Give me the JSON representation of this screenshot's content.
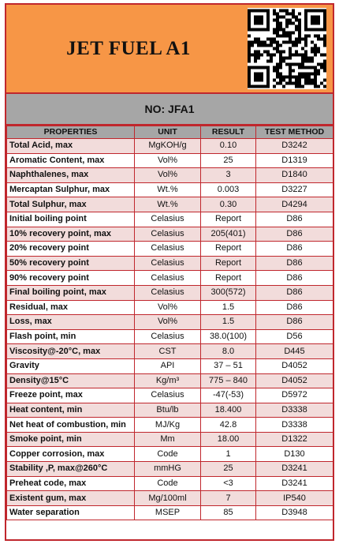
{
  "header": {
    "title": "JET FUEL A1",
    "qr_icon": "qr-code-icon"
  },
  "subheader": {
    "label": "NO: JFA1"
  },
  "colors": {
    "header_bg": "#f79646",
    "subheader_bg": "#a6a6a6",
    "border": "#c0272d",
    "row_alt": "#f2dcdb"
  },
  "table": {
    "columns": [
      "PROPERTIES",
      "UNIT",
      "RESULT",
      "TEST METHOD"
    ],
    "rows": [
      {
        "property": "Total Acid, max",
        "unit": "MgKOH/g",
        "result": "0.10",
        "method": "D3242"
      },
      {
        "property": "Aromatic Content, max",
        "unit": "Vol%",
        "result": "25",
        "method": "D1319"
      },
      {
        "property": "Naphthalenes, max",
        "unit": "Vol%",
        "result": "3",
        "method": "D1840"
      },
      {
        "property": "Mercaptan Sulphur, max",
        "unit": "Wt.%",
        "result": "0.003",
        "method": "D3227"
      },
      {
        "property": "Total Sulphur, max",
        "unit": "Wt.%",
        "result": "0.30",
        "method": "D4294"
      },
      {
        "property": "Initial boiling point",
        "unit": "Celasius",
        "result": "Report",
        "method": "D86"
      },
      {
        "property": "10% recovery point, max",
        "unit": "Celasius",
        "result": "205(401)",
        "method": "D86"
      },
      {
        "property": "20% recovery point",
        "unit": "Celasius",
        "result": "Report",
        "method": "D86"
      },
      {
        "property": "50% recovery point",
        "unit": "Celasius",
        "result": "Report",
        "method": "D86"
      },
      {
        "property": "90% recovery point",
        "unit": "Celasius",
        "result": "Report",
        "method": "D86"
      },
      {
        "property": "Final boiling point, max",
        "unit": "Celasius",
        "result": "300(572)",
        "method": "D86"
      },
      {
        "property": "Residual, max",
        "unit": "Vol%",
        "result": "1.5",
        "method": "D86"
      },
      {
        "property": "Loss, max",
        "unit": "Vol%",
        "result": "1.5",
        "method": "D86"
      },
      {
        "property": "Flash point, min",
        "unit": "Celasius",
        "result": "38.0(100)",
        "method": "D56"
      },
      {
        "property": "Viscosity@-20°C, max",
        "unit": "CST",
        "result": "8.0",
        "method": "D445"
      },
      {
        "property": "Gravity",
        "unit": "API",
        "result": "37 – 51",
        "method": "D4052"
      },
      {
        "property": "Density@15°C",
        "unit": "Kg/m³",
        "result": "775 – 840",
        "method": "D4052"
      },
      {
        "property": "Freeze point, max",
        "unit": "Celasius",
        "result": "-47(-53)",
        "method": "D5972"
      },
      {
        "property": "Heat content, min",
        "unit": "Btu/lb",
        "result": "18.400",
        "method": "D3338"
      },
      {
        "property": "Net heat of combustion, min",
        "unit": "MJ/Kg",
        "result": "42.8",
        "method": "D3338"
      },
      {
        "property": "Smoke point, min",
        "unit": "Mm",
        "result": "18.00",
        "method": "D1322"
      },
      {
        "property": "Copper corrosion, max",
        "unit": "Code",
        "result": "1",
        "method": "D130"
      },
      {
        "property": "Stability ,P, max@260°C",
        "unit": "mmHG",
        "result": "25",
        "method": "D3241"
      },
      {
        "property": "Preheat code, max",
        "unit": "Code",
        "result": "<3",
        "method": "D3241"
      },
      {
        "property": "Existent gum, max",
        "unit": "Mg/100ml",
        "result": "7",
        "method": "IP540"
      },
      {
        "property": "Water separation",
        "unit": "MSEP",
        "result": "85",
        "method": "D3948"
      }
    ]
  }
}
